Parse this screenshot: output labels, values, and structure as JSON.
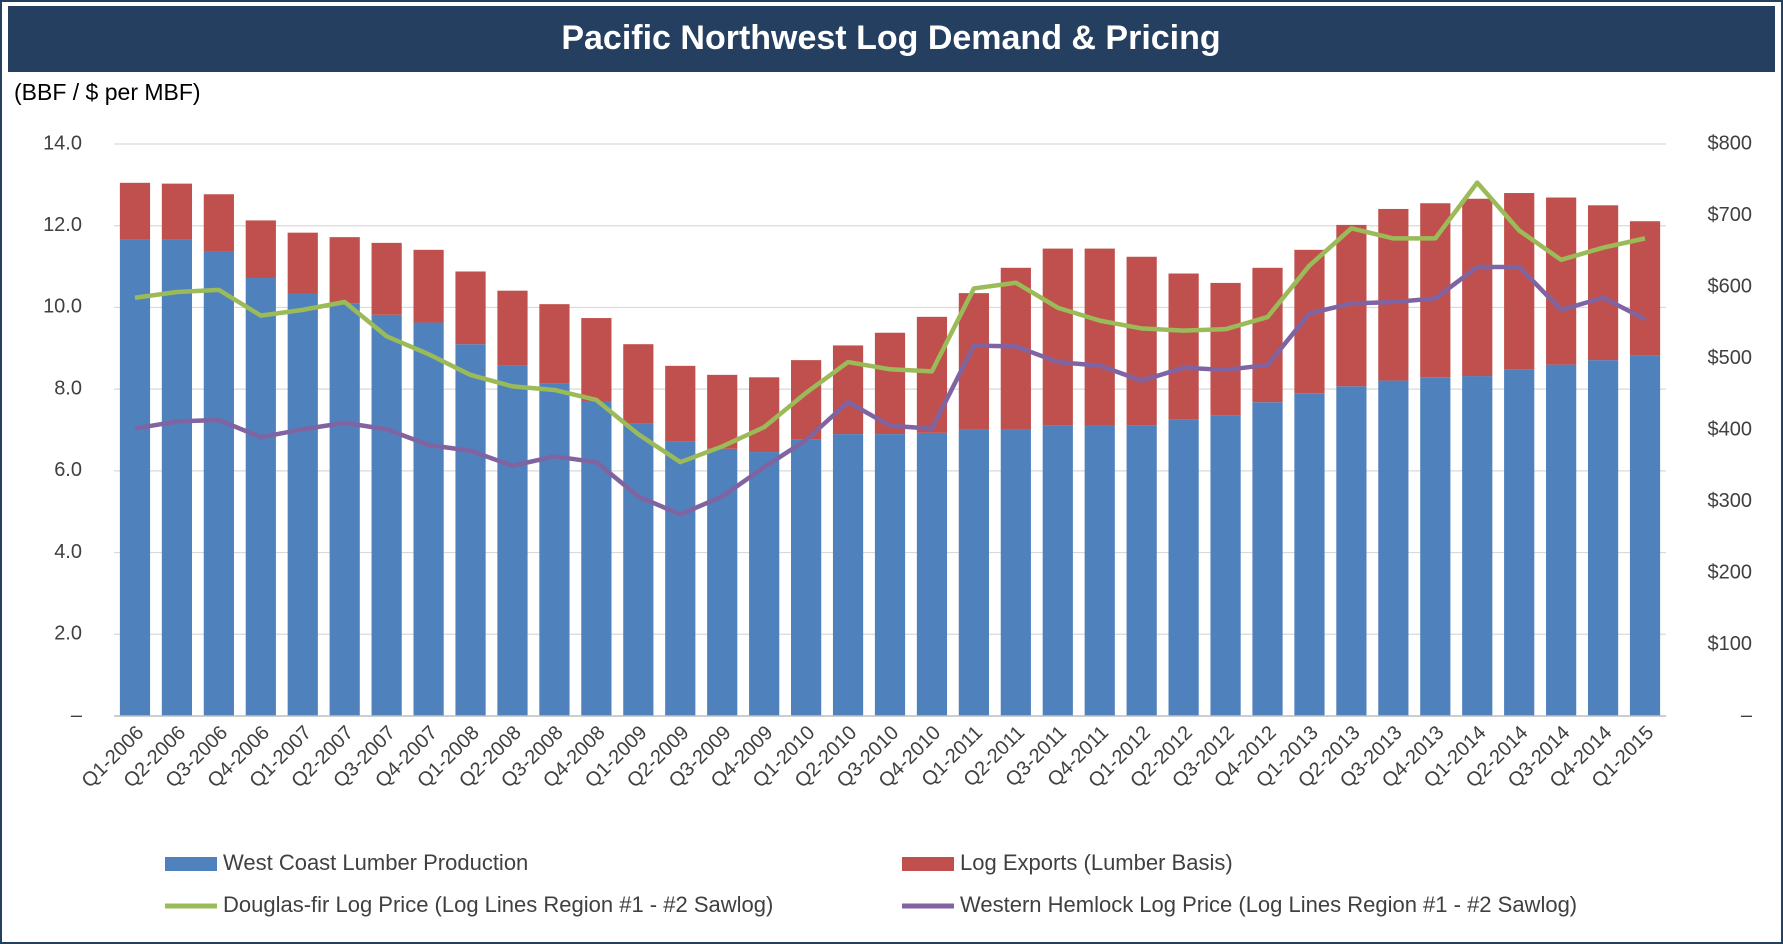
{
  "chart_data": {
    "type": "bar",
    "stacked": true,
    "title": "Pacific Northwest Log Demand & Pricing",
    "y_label": "(BBF / $ per MBF)",
    "categories": [
      "Q1-2006",
      "Q2-2006",
      "Q3-2006",
      "Q4-2006",
      "Q1-2007",
      "Q2-2007",
      "Q3-2007",
      "Q4-2007",
      "Q1-2008",
      "Q2-2008",
      "Q3-2008",
      "Q4-2008",
      "Q1-2009",
      "Q2-2009",
      "Q3-2009",
      "Q4-2009",
      "Q1-2010",
      "Q2-2010",
      "Q3-2010",
      "Q4-2010",
      "Q1-2011",
      "Q2-2011",
      "Q3-2011",
      "Q4-2011",
      "Q1-2012",
      "Q2-2012",
      "Q3-2012",
      "Q4-2012",
      "Q1-2013",
      "Q2-2013",
      "Q3-2013",
      "Q4-2013",
      "Q1-2014",
      "Q2-2014",
      "Q3-2014",
      "Q4-2014",
      "Q1-2015"
    ],
    "series": [
      {
        "name": "West Coast Lumber Production",
        "type": "bar",
        "color": "#4f81bd",
        "values": [
          11.66,
          11.66,
          11.38,
          10.72,
          10.33,
          10.1,
          9.82,
          9.63,
          9.1,
          8.57,
          8.13,
          7.71,
          7.15,
          6.71,
          6.54,
          6.46,
          6.76,
          6.9,
          6.9,
          6.93,
          7.01,
          7.01,
          7.12,
          7.1,
          7.12,
          7.26,
          7.35,
          7.68,
          7.9,
          8.07,
          8.21,
          8.29,
          8.32,
          8.49,
          8.6,
          8.71,
          8.82
        ]
      },
      {
        "name": "Log Exports (Lumber Basis)",
        "type": "bar",
        "color": "#c0504d",
        "values": [
          1.39,
          1.37,
          1.39,
          1.41,
          1.5,
          1.62,
          1.76,
          1.78,
          1.78,
          1.84,
          1.95,
          2.03,
          1.95,
          1.86,
          1.81,
          1.83,
          1.95,
          2.17,
          2.48,
          2.84,
          3.34,
          3.96,
          4.32,
          4.34,
          4.12,
          3.57,
          3.25,
          3.29,
          3.51,
          3.95,
          4.2,
          4.26,
          4.34,
          4.31,
          4.09,
          3.79,
          3.29
        ]
      },
      {
        "name": "Douglas-fir Log Price (Log Lines Region #1 - #2 Sawlog)",
        "type": "line",
        "axis": "y2",
        "color": "#9bbb59",
        "values": [
          585,
          593,
          596,
          560,
          568,
          579,
          531,
          506,
          477,
          461,
          456,
          442,
          394,
          355,
          377,
          404,
          452,
          495,
          485,
          482,
          598,
          606,
          571,
          553,
          542,
          539,
          541,
          558,
          630,
          682,
          668,
          668,
          746,
          679,
          638,
          655,
          668
        ]
      },
      {
        "name": "Western Hemlock Log Price (Log Lines Region #1 - #2 Sawlog)",
        "type": "line",
        "axis": "y2",
        "color": "#8064a2",
        "values": [
          402,
          412,
          414,
          390,
          401,
          410,
          401,
          379,
          371,
          350,
          363,
          355,
          307,
          282,
          307,
          348,
          386,
          439,
          406,
          402,
          518,
          517,
          495,
          490,
          469,
          487,
          484,
          491,
          563,
          577,
          579,
          584,
          628,
          628,
          568,
          585,
          555
        ]
      }
    ],
    "ylim": [
      0,
      14
    ],
    "yticks": [
      {
        "value": 0,
        "label": "–"
      },
      {
        "value": 2,
        "label": "2.0"
      },
      {
        "value": 4,
        "label": "4.0"
      },
      {
        "value": 6,
        "label": "6.0"
      },
      {
        "value": 8,
        "label": "8.0"
      },
      {
        "value": 10,
        "label": "10.0"
      },
      {
        "value": 12,
        "label": "12.0"
      },
      {
        "value": 14,
        "label": "14.0"
      }
    ],
    "y2lim": [
      0,
      800
    ],
    "y2ticks": [
      {
        "value": 0,
        "label": "–"
      },
      {
        "value": 100,
        "label": "$100"
      },
      {
        "value": 200,
        "label": "$200"
      },
      {
        "value": 300,
        "label": "$300"
      },
      {
        "value": 400,
        "label": "$400"
      },
      {
        "value": 500,
        "label": "$500"
      },
      {
        "value": 600,
        "label": "$600"
      },
      {
        "value": 700,
        "label": "$700"
      },
      {
        "value": 800,
        "label": "$800"
      }
    ],
    "grid": true,
    "legend": "bottom"
  }
}
